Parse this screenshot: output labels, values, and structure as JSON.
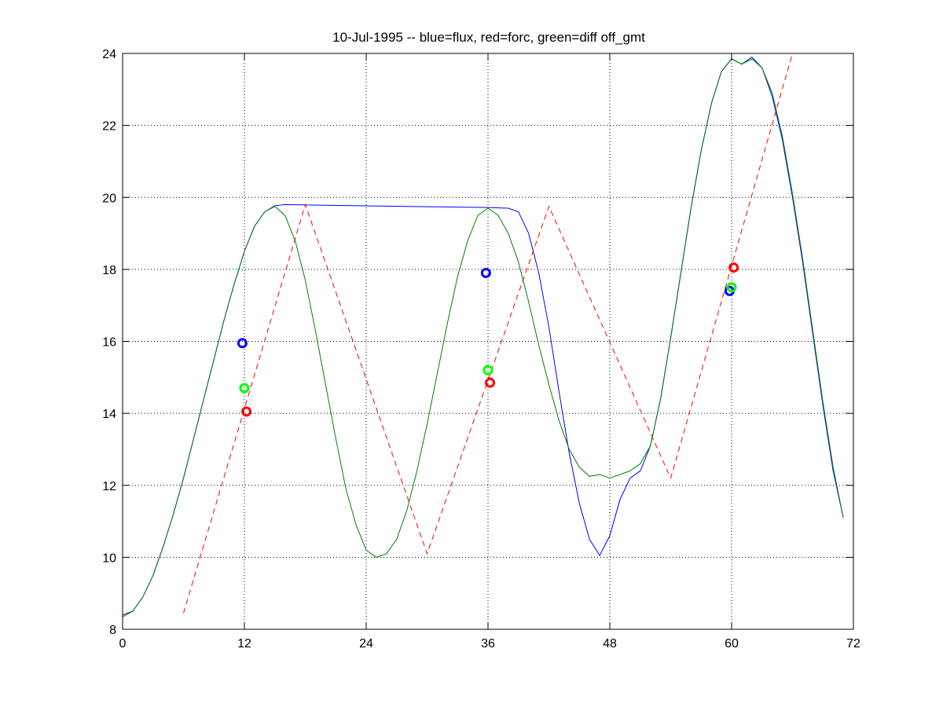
{
  "chart_data": {
    "type": "line",
    "title": "10-Jul-1995 -- blue=flux, red=forc, green=diff off_gmt",
    "xlabel": "",
    "ylabel": "",
    "xlim": [
      0,
      72
    ],
    "ylim": [
      8,
      24
    ],
    "xticks": [
      0,
      12,
      24,
      36,
      48,
      60,
      72
    ],
    "yticks": [
      8,
      10,
      12,
      14,
      16,
      18,
      20,
      22,
      24
    ],
    "grid": true,
    "series": [
      {
        "color": "#0000ff",
        "style": "solid",
        "points": [
          [
            0,
            8.4
          ],
          [
            1,
            8.5
          ],
          [
            2,
            8.9
          ],
          [
            3,
            9.5
          ],
          [
            4,
            10.3
          ],
          [
            5,
            11.2
          ],
          [
            6,
            12.2
          ],
          [
            7,
            13.3
          ],
          [
            8,
            14.4
          ],
          [
            9,
            15.5
          ],
          [
            10,
            16.6
          ],
          [
            11,
            17.6
          ],
          [
            12,
            18.5
          ],
          [
            13,
            19.2
          ],
          [
            14,
            19.6
          ],
          [
            15,
            19.77
          ],
          [
            16,
            19.8
          ],
          [
            20,
            19.78
          ],
          [
            28,
            19.75
          ],
          [
            36,
            19.72
          ],
          [
            38,
            19.7
          ],
          [
            39,
            19.6
          ],
          [
            40,
            19.0
          ],
          [
            41,
            17.9
          ],
          [
            42,
            16.4
          ],
          [
            43,
            14.6
          ],
          [
            44,
            12.9
          ],
          [
            45,
            11.5
          ],
          [
            46,
            10.5
          ],
          [
            47,
            10.05
          ],
          [
            48,
            10.6
          ],
          [
            49,
            11.6
          ],
          [
            50,
            12.2
          ],
          [
            51,
            12.4
          ],
          [
            52,
            13.1
          ],
          [
            53,
            14.4
          ],
          [
            54,
            16.1
          ],
          [
            55,
            17.9
          ],
          [
            56,
            19.7
          ],
          [
            57,
            21.3
          ],
          [
            58,
            22.6
          ],
          [
            59,
            23.5
          ],
          [
            60,
            23.85
          ],
          [
            61,
            23.7
          ],
          [
            62,
            23.9
          ],
          [
            63,
            23.6
          ],
          [
            64,
            22.8
          ],
          [
            65,
            21.6
          ],
          [
            66,
            20.0
          ],
          [
            67,
            18.2
          ],
          [
            68,
            16.2
          ],
          [
            69,
            14.2
          ],
          [
            70,
            12.4
          ],
          [
            71,
            11.1
          ]
        ]
      },
      {
        "color": "#ff0000",
        "style": "dashed",
        "points": [
          [
            6,
            8.45
          ],
          [
            18,
            19.8
          ],
          [
            30,
            10.1
          ],
          [
            42,
            19.75
          ],
          [
            54,
            12.2
          ],
          [
            66,
            24.0
          ]
        ]
      },
      {
        "color": "#008000",
        "style": "solid",
        "points": [
          [
            0,
            8.35
          ],
          [
            1,
            8.5
          ],
          [
            2,
            8.9
          ],
          [
            3,
            9.5
          ],
          [
            4,
            10.3
          ],
          [
            5,
            11.2
          ],
          [
            6,
            12.2
          ],
          [
            7,
            13.3
          ],
          [
            8,
            14.4
          ],
          [
            9,
            15.5
          ],
          [
            10,
            16.6
          ],
          [
            11,
            17.6
          ],
          [
            12,
            18.5
          ],
          [
            13,
            19.2
          ],
          [
            14,
            19.6
          ],
          [
            15,
            19.75
          ],
          [
            16,
            19.5
          ],
          [
            17,
            18.8
          ],
          [
            18,
            17.7
          ],
          [
            19,
            16.3
          ],
          [
            20,
            14.8
          ],
          [
            21,
            13.3
          ],
          [
            22,
            11.9
          ],
          [
            23,
            10.9
          ],
          [
            24,
            10.2
          ],
          [
            25,
            10.0
          ],
          [
            26,
            10.1
          ],
          [
            27,
            10.5
          ],
          [
            28,
            11.3
          ],
          [
            29,
            12.4
          ],
          [
            30,
            13.7
          ],
          [
            31,
            15.1
          ],
          [
            32,
            16.5
          ],
          [
            33,
            17.8
          ],
          [
            34,
            18.8
          ],
          [
            35,
            19.5
          ],
          [
            36,
            19.7
          ],
          [
            37,
            19.5
          ],
          [
            38,
            19.0
          ],
          [
            39,
            18.2
          ],
          [
            40,
            17.1
          ],
          [
            41,
            15.9
          ],
          [
            42,
            14.8
          ],
          [
            43,
            13.8
          ],
          [
            44,
            13.0
          ],
          [
            45,
            12.5
          ],
          [
            46,
            12.25
          ],
          [
            47,
            12.3
          ],
          [
            48,
            12.2
          ],
          [
            49,
            12.3
          ],
          [
            50,
            12.4
          ],
          [
            51,
            12.6
          ],
          [
            52,
            13.1
          ],
          [
            53,
            14.4
          ],
          [
            54,
            16.1
          ],
          [
            55,
            17.9
          ],
          [
            56,
            19.7
          ],
          [
            57,
            21.3
          ],
          [
            58,
            22.6
          ],
          [
            59,
            23.5
          ],
          [
            60,
            23.85
          ],
          [
            61,
            23.7
          ],
          [
            62,
            23.85
          ],
          [
            63,
            23.6
          ],
          [
            64,
            22.9
          ],
          [
            65,
            21.7
          ],
          [
            66,
            20.1
          ],
          [
            67,
            18.3
          ],
          [
            68,
            16.3
          ],
          [
            69,
            14.3
          ],
          [
            70,
            12.5
          ],
          [
            71,
            11.1
          ]
        ]
      }
    ],
    "markers": [
      {
        "color": "#0000ff",
        "x": 11.8,
        "y": 15.95
      },
      {
        "color": "#00ff00",
        "x": 12.0,
        "y": 14.7
      },
      {
        "color": "#ff0000",
        "x": 12.2,
        "y": 14.05
      },
      {
        "color": "#0000ff",
        "x": 35.8,
        "y": 17.9
      },
      {
        "color": "#00ff00",
        "x": 36.0,
        "y": 15.2
      },
      {
        "color": "#ff0000",
        "x": 36.2,
        "y": 14.85
      },
      {
        "color": "#0000ff",
        "x": 59.8,
        "y": 17.4
      },
      {
        "color": "#00ff00",
        "x": 60.0,
        "y": 17.5
      },
      {
        "color": "#ff0000",
        "x": 60.2,
        "y": 18.05
      }
    ]
  }
}
